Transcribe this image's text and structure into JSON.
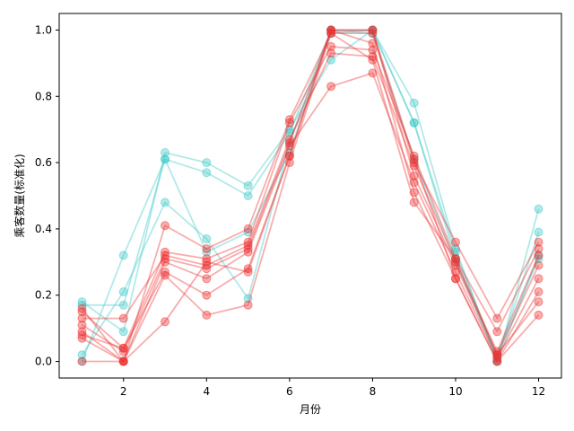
{
  "chart_data": {
    "type": "line",
    "xlabel": "月份",
    "ylabel": "乘客数量(标准化)",
    "xlim": [
      0.45,
      12.55
    ],
    "ylim": [
      -0.05,
      1.05
    ],
    "xticks": [
      2,
      4,
      6,
      8,
      10,
      12
    ],
    "yticks": [
      0.0,
      0.2,
      0.4,
      0.6,
      0.8,
      1.0
    ],
    "x": [
      1,
      2,
      3,
      4,
      5,
      6,
      7,
      8,
      9,
      10,
      11,
      12
    ],
    "colors": {
      "cyan": "#3fc9c9",
      "red": "#ee3333"
    },
    "series": [
      {
        "color": "cyan",
        "values": [
          0.18,
          0.09,
          0.63,
          0.6,
          0.53,
          0.7,
          0.91,
          1.0,
          0.78,
          0.34,
          0.0,
          0.46
        ]
      },
      {
        "color": "cyan",
        "values": [
          0.17,
          0.17,
          0.61,
          0.57,
          0.5,
          0.69,
          1.0,
          1.0,
          0.72,
          0.33,
          0.01,
          0.39
        ]
      },
      {
        "color": "cyan",
        "values": [
          0.02,
          0.21,
          0.48,
          0.37,
          0.19,
          0.66,
          0.99,
          1.0,
          0.72,
          0.31,
          0.0,
          0.32
        ]
      },
      {
        "color": "cyan",
        "values": [
          0.0,
          0.32,
          0.61,
          0.33,
          0.39,
          0.63,
          1.0,
          0.99,
          0.61,
          0.3,
          0.02,
          0.31
        ]
      },
      {
        "color": "red",
        "values": [
          0.16,
          0.0,
          0.41,
          0.34,
          0.4,
          0.73,
          0.99,
          0.99,
          0.6,
          0.36,
          0.13,
          0.36
        ]
      },
      {
        "color": "red",
        "values": [
          0.15,
          0.04,
          0.33,
          0.31,
          0.36,
          0.72,
          0.95,
          0.94,
          0.62,
          0.31,
          0.09,
          0.34
        ]
      },
      {
        "color": "red",
        "values": [
          0.13,
          0.13,
          0.32,
          0.29,
          0.35,
          0.67,
          0.93,
          0.92,
          0.59,
          0.3,
          0.03,
          0.32
        ]
      },
      {
        "color": "red",
        "values": [
          0.11,
          0.03,
          0.31,
          0.28,
          0.34,
          0.66,
          1.0,
          1.0,
          0.56,
          0.29,
          0.02,
          0.29
        ]
      },
      {
        "color": "red",
        "values": [
          0.09,
          0.0,
          0.3,
          0.25,
          0.33,
          0.65,
          0.83,
          0.87,
          0.54,
          0.27,
          0.01,
          0.25
        ]
      },
      {
        "color": "red",
        "values": [
          0.08,
          0.04,
          0.27,
          0.2,
          0.28,
          0.62,
          1.0,
          0.96,
          0.51,
          0.25,
          0.0,
          0.21
        ]
      },
      {
        "color": "red",
        "values": [
          0.07,
          0.0,
          0.26,
          0.14,
          0.17,
          0.6,
          0.99,
          0.91,
          0.48,
          0.31,
          0.02,
          0.18
        ]
      },
      {
        "color": "red",
        "values": [
          0.0,
          0.0,
          0.12,
          0.3,
          0.27,
          0.62,
          1.0,
          1.0,
          0.61,
          0.25,
          0.0,
          0.14
        ]
      }
    ]
  }
}
